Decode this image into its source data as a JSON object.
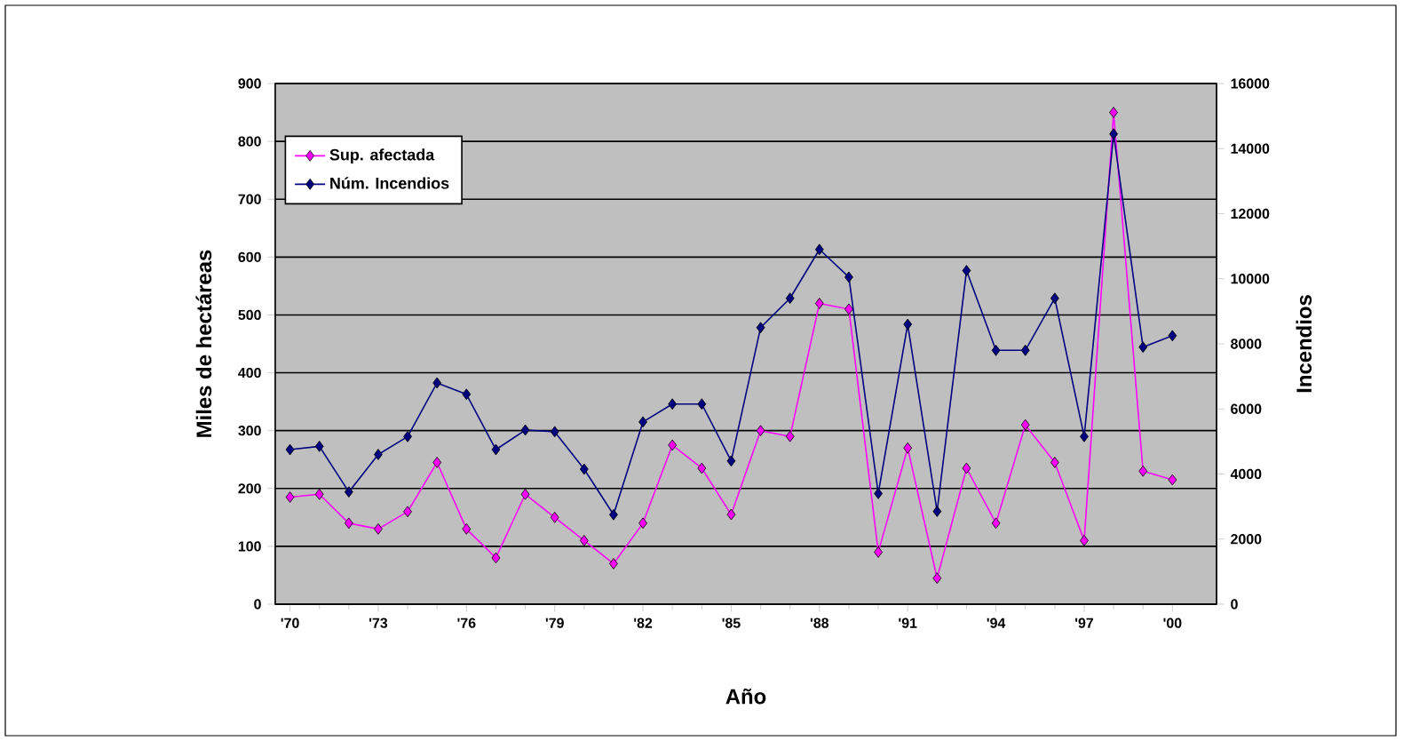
{
  "chart_data": {
    "type": "line",
    "xlabel": "Año",
    "ylabel": "Miles de hectáreas",
    "y2label": "Incendios",
    "x": [
      1970,
      1971,
      1972,
      1973,
      1974,
      1975,
      1976,
      1977,
      1978,
      1979,
      1980,
      1981,
      1982,
      1983,
      1984,
      1985,
      1986,
      1987,
      1988,
      1989,
      1990,
      1991,
      1992,
      1993,
      1994,
      1995,
      1996,
      1997,
      1998,
      1999,
      2000
    ],
    "series": [
      {
        "name": "Sup. afectada",
        "color": "#ff00ff",
        "values": [
          185,
          190,
          140,
          130,
          160,
          245,
          130,
          80,
          190,
          150,
          110,
          70,
          140,
          275,
          235,
          155,
          300,
          290,
          520,
          510,
          90,
          270,
          45,
          235,
          140,
          310,
          245,
          110,
          850,
          230,
          215
        ]
      },
      {
        "name": "Núm. Incendios",
        "color": "#000080",
        "axis": "y2",
        "values": [
          4750,
          4850,
          3450,
          4600,
          5150,
          6800,
          6450,
          4750,
          5350,
          5300,
          4150,
          2750,
          5600,
          6150,
          6150,
          4400,
          8500,
          9400,
          10900,
          10050,
          3400,
          8600,
          2850,
          10250,
          7800,
          7800,
          9400,
          5150,
          14450,
          7900,
          8250
        ]
      }
    ],
    "xlim": [
      1969.5,
      2001.5
    ],
    "xticks": [
      {
        "value": 1970,
        "label": "'70"
      },
      {
        "value": 1973,
        "label": "'73"
      },
      {
        "value": 1976,
        "label": "'76"
      },
      {
        "value": 1979,
        "label": "'79"
      },
      {
        "value": 1982,
        "label": "'82"
      },
      {
        "value": 1985,
        "label": "'85"
      },
      {
        "value": 1988,
        "label": "'88"
      },
      {
        "value": 1991,
        "label": "'91"
      },
      {
        "value": 1994,
        "label": "'94"
      },
      {
        "value": 1997,
        "label": "'97"
      },
      {
        "value": 2000,
        "label": "'00"
      }
    ],
    "ylim": [
      0,
      900
    ],
    "yticks": [
      0,
      100,
      200,
      300,
      400,
      500,
      600,
      700,
      800,
      900
    ],
    "y2lim": [
      0,
      16000
    ],
    "y2ticks": [
      0,
      2000,
      4000,
      6000,
      8000,
      10000,
      12000,
      14000,
      16000
    ],
    "grid": "y",
    "legend": "top left",
    "marker": "diamond",
    "line_style": "solid"
  }
}
